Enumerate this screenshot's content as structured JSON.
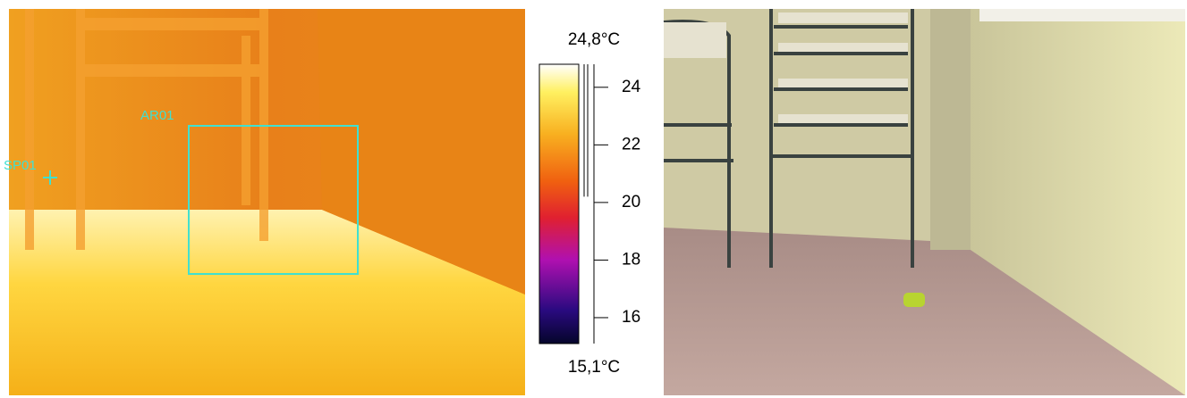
{
  "thermal_view": {
    "area_label": "AR01",
    "spot_label": "SP01"
  },
  "scale": {
    "max": {
      "value": 24.8,
      "label": "24,8°C"
    },
    "min": {
      "value": 15.1,
      "label": "15,1°C"
    },
    "ticks": [
      16,
      18,
      20,
      22,
      24
    ],
    "range_marker": [
      20.2,
      24.8
    ]
  }
}
